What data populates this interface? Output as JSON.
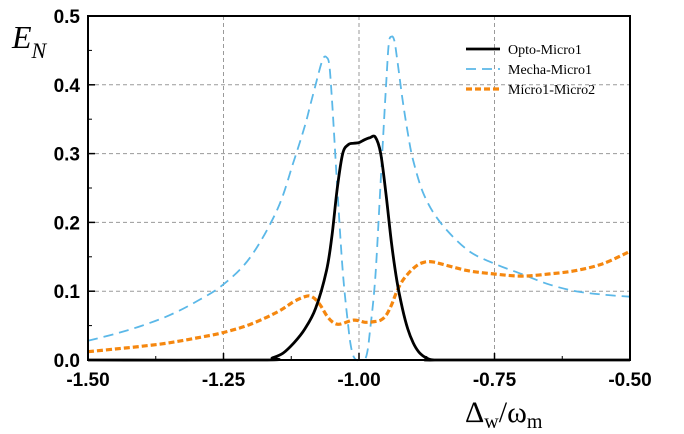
{
  "chart_data": {
    "type": "line",
    "xlabel": {
      "main": "Δ",
      "sub1": "w",
      "slash": "/ω",
      "sub2": "m"
    },
    "ylabel": {
      "main": "E",
      "sub": "N"
    },
    "xlim": [
      -1.5,
      -0.5
    ],
    "ylim": [
      0,
      0.5
    ],
    "x_ticks": [
      -1.5,
      -1.25,
      -1.0,
      -0.75,
      -0.5
    ],
    "x_tick_labels": [
      "-1.50",
      "-1.25",
      "-1.00",
      "-0.75",
      "-0.50"
    ],
    "y_ticks": [
      0.0,
      0.1,
      0.2,
      0.3,
      0.4,
      0.5
    ],
    "y_tick_labels": [
      "0.0",
      "0.1",
      "0.2",
      "0.3",
      "0.4",
      "0.5"
    ],
    "grid": true,
    "legend_position": "top-right",
    "series": [
      {
        "name": "Opto-Micro1",
        "color": "#000000",
        "style": "solid",
        "x": [
          -1.5,
          -1.175,
          -1.16,
          -1.14,
          -1.12,
          -1.1,
          -1.08,
          -1.06,
          -1.05,
          -1.04,
          -1.03,
          -1.02,
          -1.01,
          -1.0,
          -0.99,
          -0.98,
          -0.97,
          -0.96,
          -0.95,
          -0.94,
          -0.93,
          -0.92,
          -0.91,
          -0.9,
          -0.89,
          -0.88,
          -0.87,
          -0.86,
          -0.85,
          -0.5
        ],
        "y": [
          0.0,
          0.0,
          0.003,
          0.01,
          0.025,
          0.045,
          0.075,
          0.13,
          0.18,
          0.25,
          0.3,
          0.313,
          0.315,
          0.316,
          0.32,
          0.323,
          0.324,
          0.3,
          0.24,
          0.17,
          0.115,
          0.075,
          0.045,
          0.025,
          0.012,
          0.005,
          0.001,
          0.0,
          0.0,
          0.0
        ]
      },
      {
        "name": "Mecha-Micro1",
        "color": "#5bb8e8",
        "style": "dashed",
        "x": [
          -1.5,
          -1.45,
          -1.4,
          -1.35,
          -1.3,
          -1.25,
          -1.2,
          -1.15,
          -1.12,
          -1.1,
          -1.09,
          -1.08,
          -1.07,
          -1.065,
          -1.06,
          -1.055,
          -1.05,
          -1.04,
          -1.03,
          -1.02,
          -1.015,
          -1.01,
          -1.005,
          -1.0,
          -0.995,
          -0.99,
          -0.985,
          -0.98,
          -0.97,
          -0.96,
          -0.95,
          -0.945,
          -0.94,
          -0.935,
          -0.93,
          -0.92,
          -0.91,
          -0.9,
          -0.88,
          -0.85,
          -0.8,
          -0.75,
          -0.7,
          -0.65,
          -0.6,
          -0.55,
          -0.5
        ],
        "y": [
          0.028,
          0.038,
          0.05,
          0.065,
          0.085,
          0.11,
          0.15,
          0.22,
          0.29,
          0.34,
          0.37,
          0.4,
          0.43,
          0.44,
          0.44,
          0.43,
          0.38,
          0.25,
          0.13,
          0.05,
          0.02,
          0.005,
          0.0,
          0.0,
          0.0,
          0.0,
          0.01,
          0.04,
          0.12,
          0.26,
          0.4,
          0.46,
          0.47,
          0.465,
          0.44,
          0.38,
          0.33,
          0.29,
          0.24,
          0.2,
          0.16,
          0.14,
          0.125,
          0.11,
          0.1,
          0.095,
          0.092
        ]
      },
      {
        "name": "Micro1-Micro2",
        "color": "#f5870f",
        "style": "dotted",
        "x": [
          -1.5,
          -1.45,
          -1.4,
          -1.35,
          -1.3,
          -1.25,
          -1.2,
          -1.15,
          -1.12,
          -1.1,
          -1.09,
          -1.08,
          -1.07,
          -1.06,
          -1.05,
          -1.04,
          -1.03,
          -1.02,
          -1.01,
          -1.0,
          -0.99,
          -0.98,
          -0.97,
          -0.96,
          -0.95,
          -0.94,
          -0.93,
          -0.92,
          -0.91,
          -0.9,
          -0.89,
          -0.88,
          -0.87,
          -0.86,
          -0.85,
          -0.8,
          -0.75,
          -0.7,
          -0.65,
          -0.6,
          -0.55,
          -0.5
        ],
        "y": [
          0.012,
          0.016,
          0.02,
          0.025,
          0.032,
          0.04,
          0.052,
          0.07,
          0.085,
          0.092,
          0.093,
          0.088,
          0.078,
          0.065,
          0.056,
          0.052,
          0.053,
          0.056,
          0.058,
          0.057,
          0.055,
          0.055,
          0.056,
          0.058,
          0.065,
          0.08,
          0.1,
          0.115,
          0.125,
          0.133,
          0.139,
          0.142,
          0.143,
          0.142,
          0.14,
          0.13,
          0.125,
          0.122,
          0.125,
          0.13,
          0.14,
          0.158
        ]
      }
    ]
  }
}
